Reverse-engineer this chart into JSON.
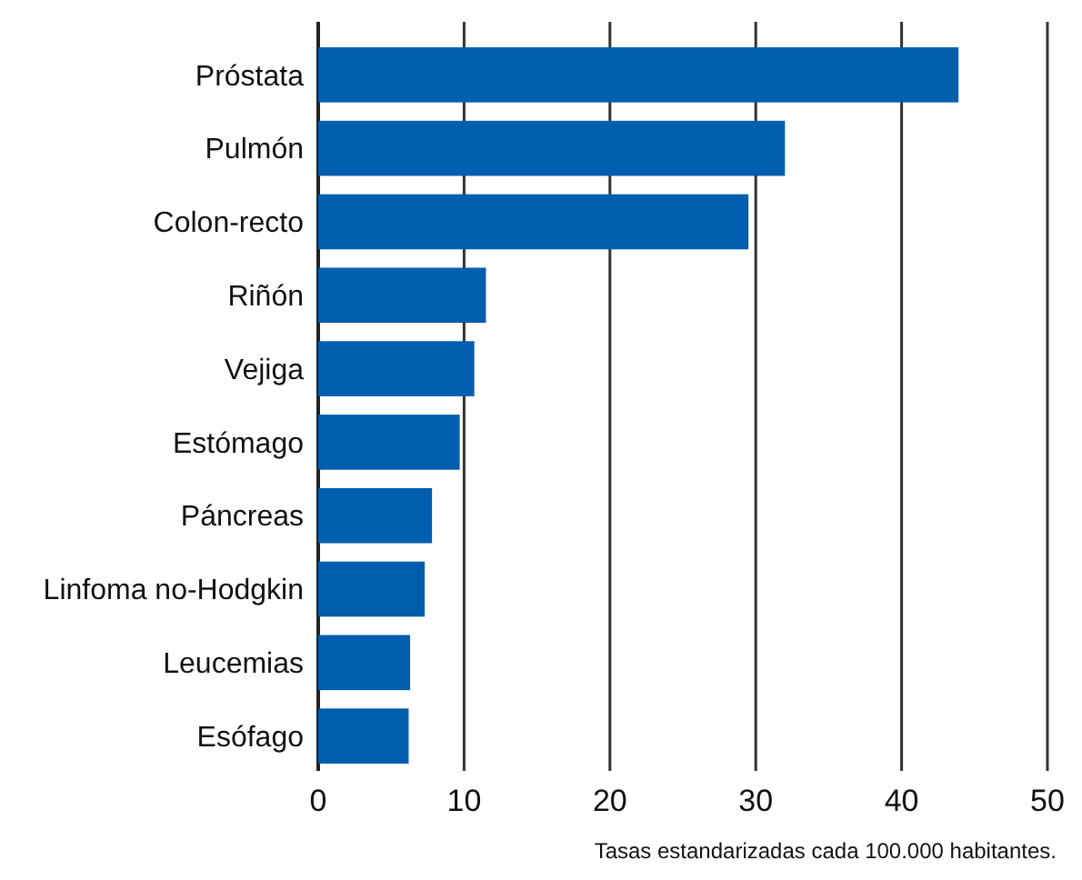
{
  "chart_data": {
    "type": "bar",
    "orientation": "horizontal",
    "categories": [
      "Próstata",
      "Pulmón",
      "Colon-recto",
      "Riñón",
      "Vejiga",
      "Estómago",
      "Páncreas",
      "Linfoma no-Hodgkin",
      "Leucemias",
      "Esófago"
    ],
    "values": [
      43.9,
      32.0,
      29.5,
      11.5,
      10.7,
      9.7,
      7.8,
      7.3,
      6.3,
      6.2
    ],
    "color": "#005eae",
    "xlim": [
      0,
      50
    ],
    "xticks": [
      0,
      10,
      20,
      30,
      40,
      50
    ],
    "grid": "x",
    "annotations": [
      "Tasas estandarizadas cada 100.000 habitantes."
    ]
  }
}
